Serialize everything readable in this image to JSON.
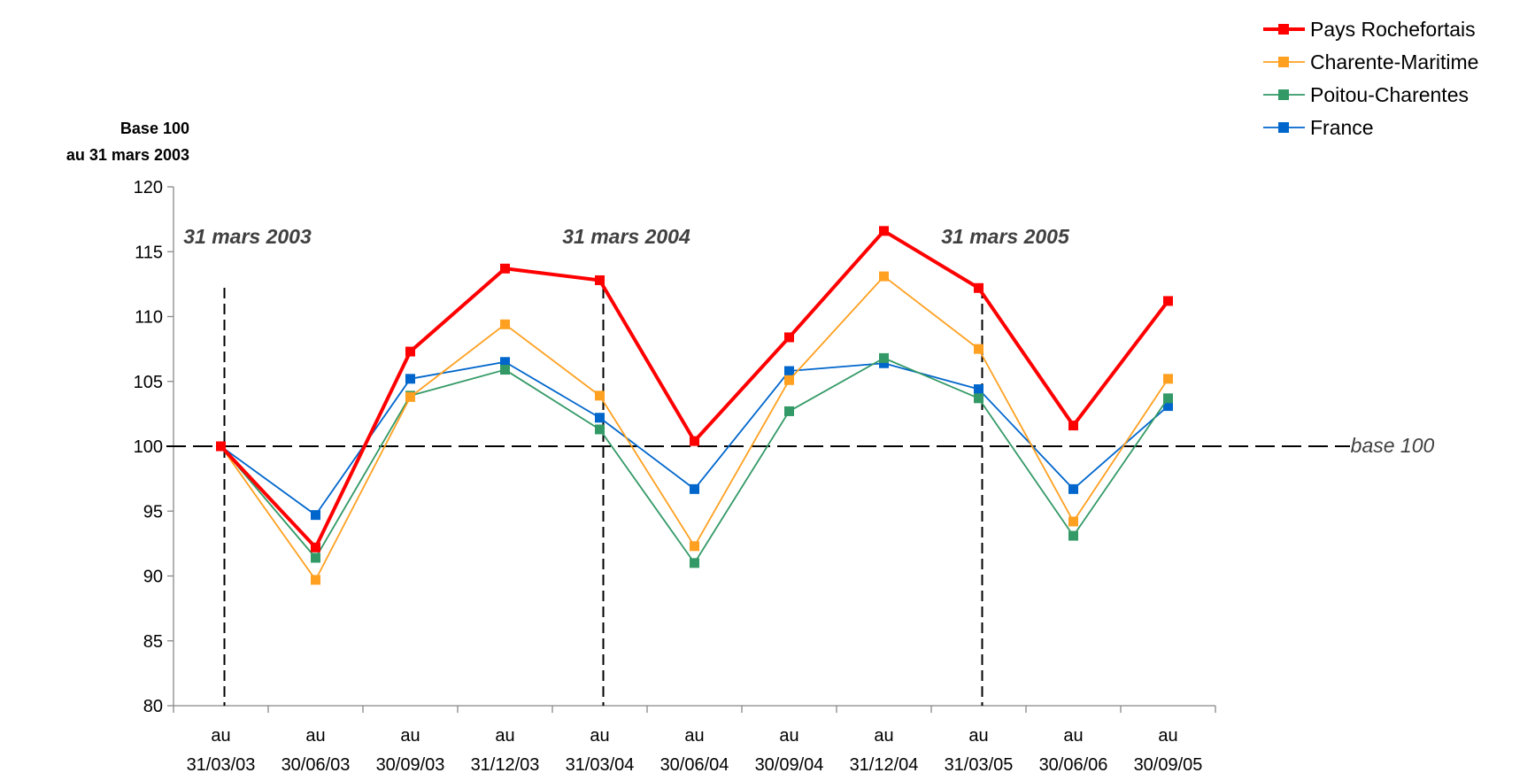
{
  "chart_data": {
    "type": "line",
    "ylabel_lines": [
      "Base 100",
      "au 31 mars 2003"
    ],
    "ylim": [
      80,
      120
    ],
    "yticks": [
      80,
      85,
      90,
      95,
      100,
      105,
      110,
      115,
      120
    ],
    "categories": [
      [
        "au",
        "31/03/03"
      ],
      [
        "au",
        "30/06/03"
      ],
      [
        "au",
        "30/09/03"
      ],
      [
        "au",
        "31/12/03"
      ],
      [
        "au",
        "31/03/04"
      ],
      [
        "au",
        "30/06/04"
      ],
      [
        "au",
        "30/09/04"
      ],
      [
        "au",
        "31/12/04"
      ],
      [
        "au",
        "31/03/05"
      ],
      [
        "au",
        "30/06/06"
      ],
      [
        "au",
        "30/09/05"
      ]
    ],
    "series": [
      {
        "name": "Pays Rochefortais",
        "color": "#ff0000",
        "emphasis": true,
        "values": [
          100,
          92.2,
          107.3,
          113.7,
          112.8,
          100.4,
          108.4,
          116.6,
          112.2,
          101.6,
          111.2
        ]
      },
      {
        "name": "Charente-Maritime",
        "color": "#ffa020",
        "emphasis": false,
        "values": [
          100,
          89.7,
          103.8,
          109.4,
          103.9,
          92.3,
          105.1,
          113.1,
          107.5,
          94.2,
          105.2
        ]
      },
      {
        "name": "Poitou-Charentes",
        "color": "#339966",
        "emphasis": false,
        "values": [
          100,
          91.4,
          103.9,
          105.9,
          101.3,
          91.0,
          102.7,
          106.8,
          103.7,
          93.1,
          103.7
        ]
      },
      {
        "name": "France",
        "color": "#0066cc",
        "emphasis": false,
        "values": [
          100,
          94.7,
          105.2,
          106.5,
          102.2,
          96.7,
          105.8,
          106.4,
          104.4,
          96.7,
          103.1
        ]
      }
    ],
    "annotations": [
      {
        "text": "31 mars 2003",
        "category_index": 0
      },
      {
        "text": "31 mars 2004",
        "category_index": 4
      },
      {
        "text": "31 mars 2005",
        "category_index": 8
      }
    ],
    "baseline": {
      "value": 100,
      "label": "base 100"
    },
    "legend_position": "top-right",
    "grid": false
  }
}
